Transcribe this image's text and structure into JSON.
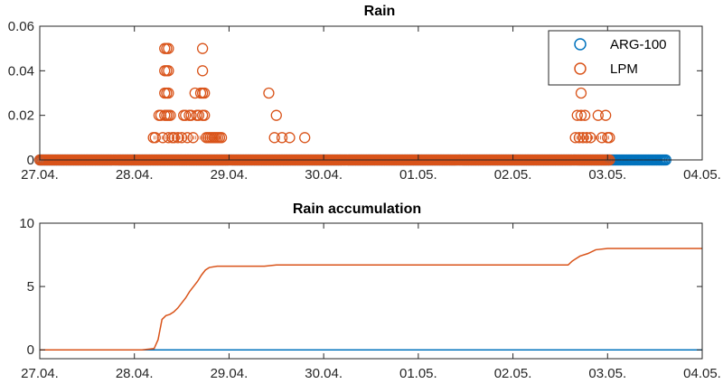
{
  "colors": {
    "arg100": "#0072BD",
    "lpm": "#D95319",
    "axis": "#262626",
    "background": "#ffffff"
  },
  "chart_data": [
    {
      "type": "scatter",
      "title": "Rain",
      "xlabel": "",
      "ylabel": "",
      "x_axis_type": "date",
      "xlim": [
        "2019-04-27T00:00",
        "2019-05-04T00:00"
      ],
      "ylim": [
        0,
        0.06
      ],
      "y_ticks": [
        "0",
        "0.02",
        "0.04",
        "0.06"
      ],
      "x_ticks": [
        "27.04.",
        "28.04.",
        "29.04.",
        "30.04.",
        "01.05.",
        "02.05.",
        "03.05.",
        "04.05."
      ],
      "grid": false,
      "legend": {
        "position": "top-right"
      },
      "series": [
        {
          "name": "ARG-100",
          "color": "#0072BD",
          "points": [
            [
              "2019-04-27T00:00",
              0
            ],
            [
              "2019-04-27T06:00",
              0
            ],
            [
              "2019-04-27T12:00",
              0
            ],
            [
              "2019-04-27T18:00",
              0
            ],
            [
              "2019-04-28T00:00",
              0
            ],
            [
              "2019-04-28T12:00",
              0
            ],
            [
              "2019-04-29T00:00",
              0
            ],
            [
              "2019-04-29T12:00",
              0
            ],
            [
              "2019-04-30T00:00",
              0
            ],
            [
              "2019-04-30T12:00",
              0
            ],
            [
              "2019-05-01T00:00",
              0
            ],
            [
              "2019-05-01T12:00",
              0
            ],
            [
              "2019-05-02T00:00",
              0
            ],
            [
              "2019-05-02T12:00",
              0
            ],
            [
              "2019-05-03T00:00",
              0
            ],
            [
              "2019-05-03T01:00",
              0
            ],
            [
              "2019-05-03T02:00",
              0
            ],
            [
              "2019-05-03T03:00",
              0
            ],
            [
              "2019-05-03T04:00",
              0
            ],
            [
              "2019-05-03T05:00",
              0
            ],
            [
              "2019-05-03T06:00",
              0
            ],
            [
              "2019-05-03T07:00",
              0
            ],
            [
              "2019-05-03T08:00",
              0
            ],
            [
              "2019-05-03T09:00",
              0
            ],
            [
              "2019-05-03T10:00",
              0
            ],
            [
              "2019-05-03T11:00",
              0
            ],
            [
              "2019-05-03T12:00",
              0
            ],
            [
              "2019-05-03T13:00",
              0
            ],
            [
              "2019-05-03T14:00",
              0
            ],
            [
              "2019-05-03T15:00",
              0
            ]
          ]
        },
        {
          "name": "LPM",
          "color": "#D95319",
          "points": [
            [
              "2019-04-28T04:48",
              0.01
            ],
            [
              "2019-04-28T05:17",
              0.01
            ],
            [
              "2019-04-28T06:14",
              0.02
            ],
            [
              "2019-04-28T06:43",
              0.02
            ],
            [
              "2019-04-28T07:12",
              0.01
            ],
            [
              "2019-04-28T07:41",
              0.02
            ],
            [
              "2019-04-28T07:41",
              0.03
            ],
            [
              "2019-04-28T07:41",
              0.04
            ],
            [
              "2019-04-28T07:41",
              0.05
            ],
            [
              "2019-04-28T08:10",
              0.02
            ],
            [
              "2019-04-28T08:10",
              0.03
            ],
            [
              "2019-04-28T08:10",
              0.04
            ],
            [
              "2019-04-28T08:10",
              0.05
            ],
            [
              "2019-04-28T08:38",
              0.01
            ],
            [
              "2019-04-28T08:38",
              0.02
            ],
            [
              "2019-04-28T08:38",
              0.03
            ],
            [
              "2019-04-28T08:38",
              0.04
            ],
            [
              "2019-04-28T08:38",
              0.05
            ],
            [
              "2019-04-28T09:07",
              0.02
            ],
            [
              "2019-04-28T09:36",
              0.01
            ],
            [
              "2019-04-28T10:05",
              0.01
            ],
            [
              "2019-04-28T11:02",
              0.01
            ],
            [
              "2019-04-28T12:00",
              0.01
            ],
            [
              "2019-04-28T12:29",
              0.02
            ],
            [
              "2019-04-28T12:58",
              0.02
            ],
            [
              "2019-04-28T13:26",
              0.01
            ],
            [
              "2019-04-28T13:55",
              0.02
            ],
            [
              "2019-04-28T14:24",
              0.02
            ],
            [
              "2019-04-28T14:53",
              0.01
            ],
            [
              "2019-04-28T15:22",
              0.03
            ],
            [
              "2019-04-28T15:50",
              0.02
            ],
            [
              "2019-04-28T16:19",
              0.02
            ],
            [
              "2019-04-28T16:48",
              0.03
            ],
            [
              "2019-04-28T17:17",
              0.02
            ],
            [
              "2019-04-28T17:17",
              0.03
            ],
            [
              "2019-04-28T17:17",
              0.04
            ],
            [
              "2019-04-28T17:17",
              0.05
            ],
            [
              "2019-04-28T17:46",
              0.02
            ],
            [
              "2019-04-28T17:46",
              0.03
            ],
            [
              "2019-04-28T18:14",
              0.01
            ],
            [
              "2019-04-28T18:43",
              0.01
            ],
            [
              "2019-04-28T19:12",
              0.01
            ],
            [
              "2019-04-28T19:41",
              0.01
            ],
            [
              "2019-04-28T20:10",
              0.01
            ],
            [
              "2019-04-28T20:38",
              0.01
            ],
            [
              "2019-04-28T21:07",
              0.01
            ],
            [
              "2019-04-28T21:36",
              0.01
            ],
            [
              "2019-04-28T22:05",
              0.01
            ],
            [
              "2019-04-29T10:05",
              0.03
            ],
            [
              "2019-04-29T11:31",
              0.01
            ],
            [
              "2019-04-29T12:00",
              0.02
            ],
            [
              "2019-04-29T13:26",
              0.01
            ],
            [
              "2019-04-29T15:22",
              0.01
            ],
            [
              "2019-04-29T19:12",
              0.01
            ],
            [
              "2019-05-02T15:50",
              0.01
            ],
            [
              "2019-05-02T16:19",
              0.02
            ],
            [
              "2019-05-02T16:48",
              0.01
            ],
            [
              "2019-05-02T17:17",
              0.02
            ],
            [
              "2019-05-02T17:17",
              0.03
            ],
            [
              "2019-05-02T17:46",
              0.01
            ],
            [
              "2019-05-02T18:14",
              0.02
            ],
            [
              "2019-05-02T18:43",
              0.01
            ],
            [
              "2019-05-02T19:41",
              0.01
            ],
            [
              "2019-05-02T21:36",
              0.02
            ],
            [
              "2019-05-02T22:34",
              0.01
            ],
            [
              "2019-05-02T23:31",
              0.02
            ],
            [
              "2019-05-03T00:00",
              0.01
            ],
            [
              "2019-05-03T00:29",
              0.01
            ]
          ]
        }
      ]
    },
    {
      "type": "line",
      "title": "Rain accumulation",
      "xlabel": "",
      "ylabel": "",
      "x_axis_type": "date",
      "xlim": [
        "2019-04-27T00:00",
        "2019-05-04T00:00"
      ],
      "ylim": [
        -0.7,
        10
      ],
      "y_ticks": [
        "0",
        "5",
        "10"
      ],
      "x_ticks": [
        "27.04.",
        "28.04.",
        "29.04.",
        "30.04.",
        "01.05.",
        "02.05.",
        "03.05.",
        "04.05."
      ],
      "grid": false,
      "series": [
        {
          "name": "ARG-100",
          "color": "#0072BD",
          "points": [
            [
              "2019-04-27T00:00",
              0
            ],
            [
              "2019-05-04T00:00",
              0
            ]
          ]
        },
        {
          "name": "LPM",
          "color": "#D95319",
          "points": [
            [
              "2019-04-27T00:00",
              0
            ],
            [
              "2019-04-28T01:55",
              0
            ],
            [
              "2019-04-28T05:00",
              0.1
            ],
            [
              "2019-04-28T06:00",
              0.8
            ],
            [
              "2019-04-28T07:00",
              2.4
            ],
            [
              "2019-04-28T08:00",
              2.7
            ],
            [
              "2019-04-28T09:00",
              2.8
            ],
            [
              "2019-04-28T10:00",
              3.0
            ],
            [
              "2019-04-28T11:00",
              3.3
            ],
            [
              "2019-04-28T12:00",
              3.7
            ],
            [
              "2019-04-28T13:00",
              4.1
            ],
            [
              "2019-04-28T14:00",
              4.6
            ],
            [
              "2019-04-28T15:00",
              5.0
            ],
            [
              "2019-04-28T16:00",
              5.4
            ],
            [
              "2019-04-28T17:00",
              5.9
            ],
            [
              "2019-04-28T18:00",
              6.3
            ],
            [
              "2019-04-28T19:00",
              6.5
            ],
            [
              "2019-04-28T21:00",
              6.6
            ],
            [
              "2019-04-29T09:00",
              6.6
            ],
            [
              "2019-04-29T12:00",
              6.7
            ],
            [
              "2019-04-29T20:00",
              6.7
            ],
            [
              "2019-05-02T14:00",
              6.7
            ],
            [
              "2019-05-02T15:00",
              7.0
            ],
            [
              "2019-05-02T17:00",
              7.4
            ],
            [
              "2019-05-02T19:00",
              7.6
            ],
            [
              "2019-05-02T21:00",
              7.9
            ],
            [
              "2019-05-03T00:00",
              8.0
            ],
            [
              "2019-05-04T00:00",
              8.0
            ]
          ]
        }
      ]
    }
  ]
}
